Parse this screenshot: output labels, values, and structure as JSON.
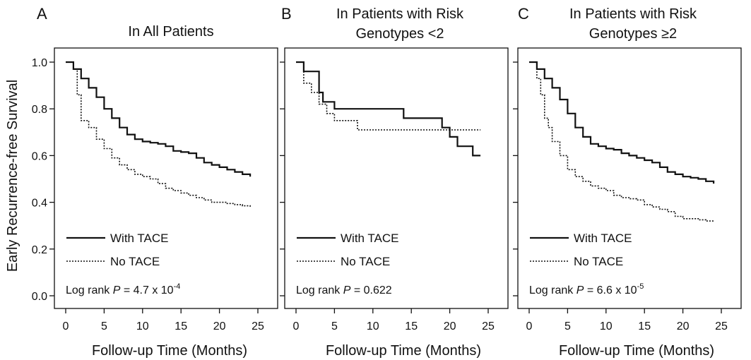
{
  "ylabel": "Early Recurrence-free Survival",
  "xlabel": "Follow-up Time (Months)",
  "chart_data": [
    {
      "type": "line",
      "panel": "A",
      "title_lines": [
        "In All Patients"
      ],
      "xlabel": "Follow-up Time (Months)",
      "ylabel": "Early Recurrence-free Survival",
      "xlim": [
        0,
        25
      ],
      "ylim": [
        0.0,
        1.0
      ],
      "xticks": [
        0,
        5,
        10,
        15,
        20,
        25
      ],
      "yticks": [
        0.0,
        0.2,
        0.4,
        0.6,
        0.8,
        1.0
      ],
      "ytick_labels": [
        "0.0",
        "0.2",
        "0.4",
        "0.6",
        "0.8",
        "1.0"
      ],
      "legend": [
        "With TACE",
        "No TACE"
      ],
      "pvalue": {
        "prefix": "Log rank ",
        "p": "P",
        "mid": " = 4.7 x 10",
        "sup": "-4"
      },
      "series": [
        {
          "name": "With TACE",
          "style": "solid",
          "x": [
            0,
            1,
            2,
            3,
            4,
            5,
            6,
            7,
            8,
            9,
            10,
            11,
            12,
            13,
            14,
            15,
            16,
            17,
            18,
            19,
            20,
            21,
            22,
            23,
            24
          ],
          "y": [
            1.0,
            0.97,
            0.93,
            0.89,
            0.85,
            0.8,
            0.76,
            0.72,
            0.69,
            0.67,
            0.66,
            0.655,
            0.65,
            0.64,
            0.62,
            0.615,
            0.61,
            0.59,
            0.57,
            0.56,
            0.55,
            0.54,
            0.53,
            0.52,
            0.51
          ]
        },
        {
          "name": "No TACE",
          "style": "dotted",
          "x": [
            0,
            1,
            1.5,
            2,
            3,
            4,
            5,
            6,
            7,
            8,
            9,
            10,
            11,
            12,
            13,
            14,
            15,
            16,
            17,
            18,
            19,
            20,
            21,
            22,
            23,
            24
          ],
          "y": [
            1.0,
            0.97,
            0.86,
            0.75,
            0.72,
            0.67,
            0.63,
            0.59,
            0.56,
            0.54,
            0.52,
            0.51,
            0.5,
            0.48,
            0.46,
            0.45,
            0.44,
            0.43,
            0.42,
            0.41,
            0.4,
            0.4,
            0.395,
            0.39,
            0.385,
            0.38
          ]
        }
      ]
    },
    {
      "type": "line",
      "panel": "B",
      "title_lines": [
        "In Patients with Risk",
        "Genotypes <2"
      ],
      "xlabel": "Follow-up Time (Months)",
      "ylabel": "",
      "xlim": [
        0,
        25
      ],
      "ylim": [
        0.0,
        1.0
      ],
      "xticks": [
        0,
        5,
        10,
        15,
        20,
        25
      ],
      "yticks": [
        0.0,
        0.2,
        0.4,
        0.6,
        0.8,
        1.0
      ],
      "ytick_labels": [],
      "legend": [
        "With TACE",
        "No TACE"
      ],
      "pvalue": {
        "prefix": "Log rank ",
        "p": "P",
        "mid": " = 0.622",
        "sup": ""
      },
      "series": [
        {
          "name": "With TACE",
          "style": "solid",
          "x": [
            0,
            1,
            3,
            3.5,
            5,
            14,
            19,
            20,
            21,
            22,
            23,
            24
          ],
          "y": [
            1.0,
            0.96,
            0.87,
            0.83,
            0.8,
            0.76,
            0.72,
            0.68,
            0.64,
            0.64,
            0.6,
            0.6
          ]
        },
        {
          "name": "No TACE",
          "style": "dotted",
          "x": [
            0,
            1,
            2,
            3,
            4,
            5,
            6,
            8,
            24
          ],
          "y": [
            1.0,
            0.91,
            0.87,
            0.82,
            0.78,
            0.75,
            0.75,
            0.71,
            0.71
          ]
        }
      ]
    },
    {
      "type": "line",
      "panel": "C",
      "title_lines": [
        "In Patients with Risk",
        "Genotypes ≥2"
      ],
      "xlabel": "Follow-up Time (Months)",
      "ylabel": "",
      "xlim": [
        0,
        25
      ],
      "ylim": [
        0.0,
        1.0
      ],
      "xticks": [
        0,
        5,
        10,
        15,
        20,
        25
      ],
      "yticks": [
        0.0,
        0.2,
        0.4,
        0.6,
        0.8,
        1.0
      ],
      "ytick_labels": [],
      "legend": [
        "With TACE",
        "No TACE"
      ],
      "pvalue": {
        "prefix": "Log rank ",
        "p": "P",
        "mid": " = 6.6 x 10",
        "sup": "-5"
      },
      "series": [
        {
          "name": "With TACE",
          "style": "solid",
          "x": [
            0,
            1,
            2,
            3,
            4,
            5,
            6,
            7,
            8,
            9,
            10,
            11,
            12,
            13,
            14,
            15,
            16,
            17,
            18,
            19,
            20,
            21,
            22,
            23,
            24
          ],
          "y": [
            1.0,
            0.97,
            0.93,
            0.89,
            0.84,
            0.78,
            0.72,
            0.68,
            0.65,
            0.64,
            0.63,
            0.625,
            0.61,
            0.6,
            0.59,
            0.58,
            0.57,
            0.55,
            0.53,
            0.52,
            0.51,
            0.505,
            0.5,
            0.49,
            0.48
          ]
        },
        {
          "name": "No TACE",
          "style": "dotted",
          "x": [
            0,
            1,
            1.5,
            2,
            2.5,
            3,
            4,
            5,
            6,
            7,
            8,
            9,
            10,
            11,
            12,
            13,
            14,
            15,
            16,
            17,
            18,
            19,
            20,
            21,
            22,
            23,
            24
          ],
          "y": [
            1.0,
            0.93,
            0.86,
            0.76,
            0.72,
            0.66,
            0.6,
            0.54,
            0.51,
            0.49,
            0.47,
            0.46,
            0.45,
            0.43,
            0.42,
            0.415,
            0.41,
            0.39,
            0.38,
            0.37,
            0.36,
            0.34,
            0.33,
            0.33,
            0.325,
            0.32,
            0.315
          ]
        }
      ]
    }
  ]
}
